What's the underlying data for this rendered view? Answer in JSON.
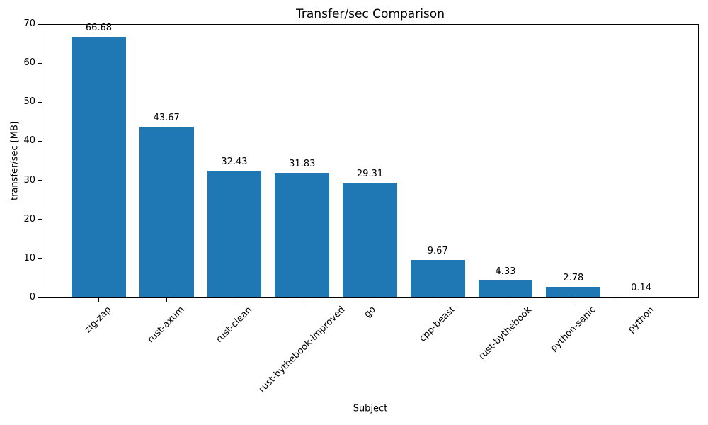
{
  "chart_data": {
    "type": "bar",
    "title": "Transfer/sec Comparison",
    "xlabel": "Subject",
    "ylabel": "transfer/sec [MB]",
    "categories": [
      "zig-zap",
      "rust-axum",
      "rust-clean",
      "rust-bythebook-improved",
      "go",
      "cpp-beast",
      "rust-bythebook",
      "python-sanic",
      "python"
    ],
    "values": [
      66.68,
      43.67,
      32.43,
      31.83,
      29.31,
      9.67,
      4.33,
      2.78,
      0.14
    ],
    "value_labels": [
      "66.68",
      "43.67",
      "32.43",
      "31.83",
      "29.31",
      "9.67",
      "4.33",
      "2.78",
      "0.14"
    ],
    "ylim": [
      0,
      70
    ],
    "yticks": [
      0,
      10,
      20,
      30,
      40,
      50,
      60,
      70
    ],
    "bar_color": "#1f77b4",
    "bar_width_fraction": 0.8,
    "x_tick_rotation_deg": 45,
    "grid": false,
    "legend_position": "none"
  }
}
